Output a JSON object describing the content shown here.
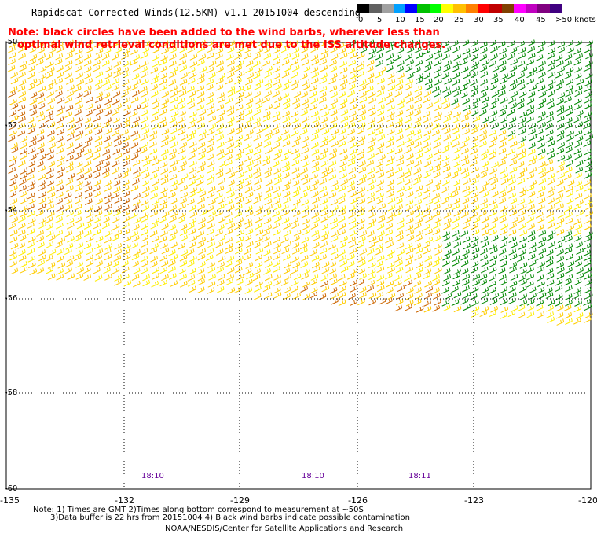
{
  "title": "Rapidscat Corrected Winds(12.5KM) v1.1 20151004 descending",
  "note_line1": "Note: black circles have been added to the wind barbs, wherever less than",
  "note_line2": "optimal wind retrieval conditions are met due to the ISS altitude changes.",
  "legend": {
    "colors": [
      "#000000",
      "#606060",
      "#a0a0a0",
      "#00a0ff",
      "#0000ff",
      "#00c000",
      "#00ff00",
      "#ffff00",
      "#ffc000",
      "#ff8000",
      "#ff0000",
      "#c00000",
      "#804000",
      "#ff00ff",
      "#c000c0",
      "#800080",
      "#400080"
    ],
    "labels": [
      {
        "text": "0"
      },
      {
        "text": "5"
      },
      {
        "text": "10"
      },
      {
        "text": "15"
      },
      {
        "text": "20"
      },
      {
        "text": "25"
      },
      {
        "text": "30"
      },
      {
        "text": "35"
      },
      {
        "text": "40"
      },
      {
        "text": "45"
      },
      {
        "text": ">50 knots"
      }
    ]
  },
  "lat_labels": [
    "-50",
    "-52",
    "-54",
    "-56",
    "-58",
    "-60"
  ],
  "lon_labels": [
    "-135",
    "-132",
    "-129",
    "-126",
    "-123",
    "-120"
  ],
  "time_labels": [
    "18:10",
    "18:10",
    "18:11"
  ],
  "footer": {
    "line1": "Note: 1) Times are GMT 2)Times along bottom correspond to measurement at ~50S",
    "line2": "3)Data buffer is 22 hrs from 20151004 4) Black wind barbs indicate possible contamination",
    "line3": "NOAA/NESDIS/Center for Satellite Applications and Research"
  },
  "map_extent": {
    "lon_min": -135,
    "lon_max": -120,
    "lat_min": -60,
    "lat_max": -50
  },
  "barb_colors": {
    "strong": "#cc6600",
    "moderate": "#ffcc00",
    "light": "#ffee00",
    "calm": "#008800",
    "contaminated": "#000000"
  }
}
